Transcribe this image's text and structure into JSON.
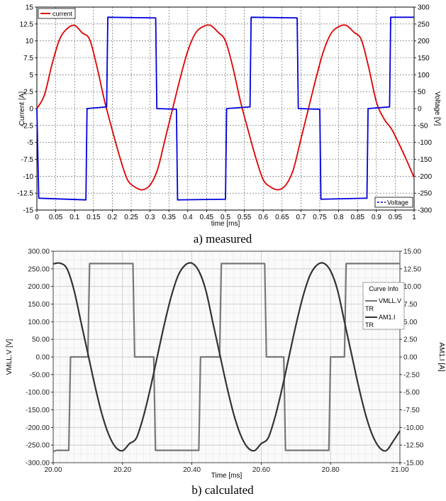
{
  "chart_data": [
    {
      "type": "line",
      "caption": "a) measured",
      "xlabel": "time [ms]",
      "ylabel": "Current [A]",
      "y2label": "Voltage [V]",
      "xlim": [
        0,
        1
      ],
      "ylim": [
        -15,
        15
      ],
      "y2lim": [
        -300,
        300
      ],
      "x_ticks": [
        "0",
        "0.05",
        "0.1",
        "0.15",
        "0.2",
        "0.25",
        "0.3",
        "0.35",
        "0.4",
        "0.45",
        "0.5",
        "0.55",
        "0.6",
        "0.65",
        "0.7",
        "0.75",
        "0.8",
        "0.85",
        "0.9",
        "0.95",
        "1"
      ],
      "y_ticks": [
        "-15",
        "-12.5",
        "-10",
        "-7.5",
        "-5",
        "-2.5",
        "0",
        "2.5",
        "5",
        "7.5",
        "10",
        "12.5",
        "15"
      ],
      "y2_ticks": [
        "-300",
        "-250",
        "-200",
        "-150",
        "-100",
        "-50",
        "0",
        "50",
        "100",
        "150",
        "200",
        "250",
        "300"
      ],
      "grid": true,
      "legend": [
        {
          "name": "current",
          "position": "top-left",
          "color": "#e00000",
          "style": "solid"
        },
        {
          "name": "Voltage",
          "position": "bottom-right",
          "color": "#0000e0",
          "style": "dashed"
        }
      ],
      "series": [
        {
          "name": "current",
          "axis": "left",
          "color": "#e00000",
          "x": [
            0,
            0.02,
            0.04,
            0.06,
            0.08,
            0.1,
            0.12,
            0.14,
            0.16,
            0.18,
            0.2,
            0.22,
            0.24,
            0.26,
            0.28,
            0.3,
            0.32,
            0.34,
            0.36,
            0.38,
            0.4,
            0.42,
            0.44,
            0.46,
            0.48,
            0.5,
            0.52,
            0.54,
            0.56,
            0.58,
            0.6,
            0.62,
            0.64,
            0.66,
            0.68,
            0.7,
            0.72,
            0.74,
            0.76,
            0.78,
            0.8,
            0.82,
            0.84,
            0.86,
            0.88,
            0.9,
            0.92,
            0.94,
            0.96,
            0.98,
            1.0
          ],
          "values": [
            0,
            2,
            6.5,
            10.2,
            11.8,
            12.3,
            11.2,
            10.2,
            6,
            1,
            -3.2,
            -7.2,
            -10.5,
            -11.6,
            -12,
            -11.3,
            -9,
            -4.5,
            0,
            4.5,
            8.5,
            11.1,
            12.1,
            12.3,
            11.3,
            10,
            6,
            1,
            -3.2,
            -7.2,
            -10.5,
            -11.6,
            -12,
            -11.3,
            -9,
            -4.5,
            0,
            4.5,
            8.5,
            11.1,
            12.1,
            12.3,
            11.3,
            10.2,
            6,
            1,
            -1.5,
            -3,
            -5.2,
            -7.6,
            -10.2
          ]
        },
        {
          "name": "Voltage",
          "axis": "right",
          "color": "#0000e0",
          "x": [
            0,
            0.005,
            0.13,
            0.133,
            0.185,
            0.188,
            0.315,
            0.318,
            0.37,
            0.373,
            0.5,
            0.503,
            0.565,
            0.568,
            0.69,
            0.693,
            0.75,
            0.753,
            0.875,
            0.878,
            0.935,
            0.938,
            1.0
          ],
          "values": [
            0,
            -265,
            -270,
            0,
            5,
            270,
            268,
            0,
            -2,
            -270,
            -268,
            0,
            5,
            270,
            268,
            0,
            -2,
            -268,
            -265,
            0,
            5,
            270,
            270
          ]
        }
      ]
    },
    {
      "type": "line",
      "caption": "b) calculated",
      "xlabel": "Time [ms]",
      "ylabel": "VMLL.V [V]",
      "y2label": "AM1.I [A]",
      "xlim": [
        20,
        21
      ],
      "ylim": [
        -300,
        300
      ],
      "y2lim": [
        -15,
        15
      ],
      "x_ticks": [
        "20.00",
        "20.20",
        "20.40",
        "20.60",
        "20.80",
        "21.00"
      ],
      "y_ticks": [
        "-300.00",
        "-250.00",
        "-200.00",
        "-150.00",
        "-100.00",
        "-50.00",
        "0.00",
        "50.00",
        "100.00",
        "150.00",
        "200.00",
        "250.00",
        "300.00"
      ],
      "y2_ticks": [
        "-15.00",
        "-12.50",
        "-10.00",
        "-7.50",
        "-5.00",
        "-2.50",
        "0.00",
        "2.50",
        "5.00",
        "7.50",
        "10.00",
        "12.50",
        "15.00"
      ],
      "grid": true,
      "legend_title": "Curve Info",
      "legend": [
        {
          "name": "VMLL.V",
          "sub": "TR",
          "color": "#777777"
        },
        {
          "name": "AM1.I",
          "sub": "TR",
          "color": "#333333"
        }
      ],
      "series": [
        {
          "name": "VMLL.V",
          "axis": "left",
          "color": "#777777",
          "x": [
            20.0,
            20.01,
            20.045,
            20.05,
            20.1,
            20.105,
            20.23,
            20.235,
            20.29,
            20.295,
            20.42,
            20.425,
            20.48,
            20.485,
            20.61,
            20.615,
            20.665,
            20.67,
            20.795,
            20.8,
            20.84,
            20.845,
            20.98,
            21.0
          ],
          "values": [
            -268,
            -265,
            -265,
            0,
            0,
            265,
            265,
            0,
            0,
            -265,
            -265,
            0,
            0,
            265,
            265,
            0,
            0,
            -265,
            -265,
            0,
            0,
            265,
            265,
            265
          ]
        },
        {
          "name": "AM1.I",
          "axis": "right",
          "color": "#333333",
          "x": [
            20.0,
            20.02,
            20.04,
            20.06,
            20.08,
            20.1,
            20.12,
            20.14,
            20.16,
            20.18,
            20.2,
            20.22,
            20.24,
            20.26,
            20.28,
            20.3,
            20.32,
            20.34,
            20.36,
            20.38,
            20.4,
            20.42,
            20.44,
            20.46,
            20.48,
            20.5,
            20.52,
            20.54,
            20.56,
            20.58,
            20.6,
            20.62,
            20.64,
            20.66,
            20.68,
            20.7,
            20.72,
            20.74,
            20.76,
            20.78,
            20.8,
            20.82,
            20.84,
            20.86,
            20.88,
            20.9,
            20.92,
            20.94,
            20.96,
            20.98,
            21.0
          ],
          "values": [
            13.2,
            13.3,
            12.5,
            9.5,
            5,
            0.5,
            -4,
            -8,
            -11,
            -12.8,
            -13.3,
            -12.3,
            -11.5,
            -8.5,
            -4.5,
            0,
            4.5,
            8.5,
            11.5,
            13,
            13.3,
            12.2,
            9.5,
            5,
            0.5,
            -4,
            -8,
            -11,
            -12.8,
            -13.3,
            -12.3,
            -11.5,
            -8.5,
            -4.5,
            0,
            4.5,
            8.5,
            11.5,
            13,
            13.3,
            12.2,
            9.5,
            5,
            0.5,
            -4,
            -8,
            -11,
            -12.8,
            -13.3,
            -12,
            -10.5
          ]
        }
      ]
    }
  ]
}
